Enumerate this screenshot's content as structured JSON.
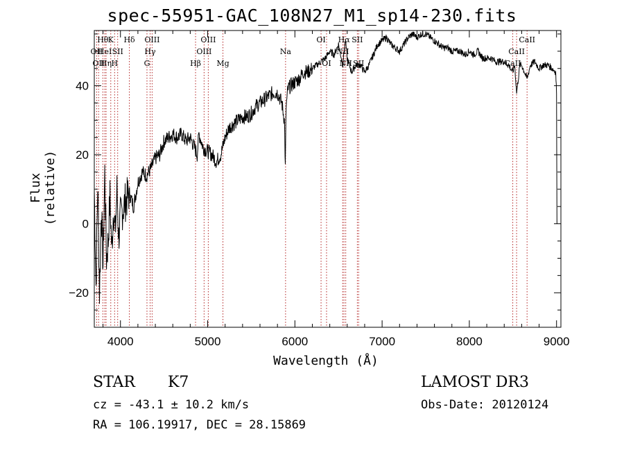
{
  "chart_data": {
    "type": "line",
    "title": "spec-55951-GAC_108N27_M1_sp14-230.fits",
    "xlabel": "Wavelength (Å)",
    "ylabel": "Flux (relative)",
    "xlim": [
      3700,
      9050
    ],
    "ylim": [
      -30,
      56
    ],
    "xticks": [
      {
        "value": 4000,
        "label": "4000"
      },
      {
        "value": 5000,
        "label": "5000"
      },
      {
        "value": 6000,
        "label": "6000"
      },
      {
        "value": 7000,
        "label": "7000"
      },
      {
        "value": 8000,
        "label": "8000"
      },
      {
        "value": 9000,
        "label": "9000"
      }
    ],
    "yticks": [
      {
        "value": -20,
        "label": "−20"
      },
      {
        "value": 0,
        "label": "0"
      },
      {
        "value": 20,
        "label": "20"
      },
      {
        "value": 40,
        "label": "40"
      }
    ],
    "series": [
      {
        "name": "spectrum",
        "color": "#000000",
        "x": [
          3700,
          3720,
          3740,
          3760,
          3780,
          3800,
          3820,
          3840,
          3860,
          3880,
          3900,
          3920,
          3940,
          3960,
          3980,
          4000,
          4050,
          4100,
          4150,
          4200,
          4250,
          4300,
          4350,
          4400,
          4450,
          4500,
          4550,
          4600,
          4650,
          4700,
          4750,
          4800,
          4850,
          4880,
          4900,
          4950,
          5000,
          5050,
          5100,
          5150,
          5200,
          5250,
          5300,
          5350,
          5400,
          5450,
          5500,
          5550,
          5600,
          5650,
          5700,
          5750,
          5800,
          5850,
          5880,
          5890,
          5900,
          5920,
          5950,
          6000,
          6050,
          6100,
          6150,
          6200,
          6250,
          6300,
          6350,
          6400,
          6450,
          6500,
          6550,
          6563,
          6580,
          6600,
          6650,
          6700,
          6750,
          6800,
          6850,
          6900,
          6950,
          7000,
          7050,
          7100,
          7150,
          7200,
          7250,
          7300,
          7350,
          7400,
          7450,
          7500,
          7550,
          7600,
          7650,
          7700,
          7750,
          7800,
          7850,
          7900,
          7950,
          8000,
          8050,
          8100,
          8150,
          8200,
          8250,
          8300,
          8350,
          8400,
          8450,
          8498,
          8520,
          8542,
          8580,
          8600,
          8662,
          8700,
          8750,
          8800,
          8850,
          8900,
          8950,
          8990,
          9000,
          9005
        ],
        "y": [
          10,
          -18,
          12,
          -20,
          5,
          -12,
          15,
          -10,
          -5,
          8,
          -8,
          5,
          -3,
          10,
          -4,
          2,
          6,
          9,
          5,
          12,
          15,
          14,
          16,
          19,
          20,
          24,
          25,
          26,
          25,
          26,
          24,
          25,
          22,
          20,
          26,
          22,
          21,
          20,
          18,
          20,
          25,
          28,
          29,
          30,
          31,
          31,
          32,
          34,
          35,
          36,
          37,
          38,
          38,
          35,
          30,
          16,
          34,
          39,
          40,
          41,
          42,
          44,
          44,
          45,
          46,
          47,
          48,
          50,
          49,
          52,
          46,
          50,
          53,
          48,
          44,
          46,
          46,
          44,
          46,
          49,
          52,
          53,
          54,
          52,
          51,
          50,
          52,
          54,
          55,
          54,
          55,
          55,
          54,
          53,
          52,
          51,
          51,
          50,
          50,
          50,
          49,
          50,
          49,
          50,
          48,
          48,
          48,
          47,
          47,
          47,
          46,
          44,
          46,
          38,
          46,
          46,
          42,
          46,
          47,
          45,
          46,
          46,
          45,
          44,
          38,
          0
        ]
      }
    ],
    "lines": [
      {
        "wavelength": 3727,
        "label": "OII",
        "row": 2
      },
      {
        "wavelength": 3750,
        "label": "OII",
        "row": 3
      },
      {
        "wavelength": 3798,
        "label": "Hθ",
        "row": 1
      },
      {
        "wavelength": 3820,
        "label": "HeI",
        "row": 2
      },
      {
        "wavelength": 3835,
        "label": "Hη",
        "row": 3
      },
      {
        "wavelength": 3889,
        "label": "K",
        "row": 1
      },
      {
        "wavelength": 3933,
        "label": "H",
        "row": 3
      },
      {
        "wavelength": 3968,
        "label": "SII",
        "row": 2
      },
      {
        "wavelength": 4102,
        "label": "Hδ",
        "row": 1
      },
      {
        "wavelength": 4304,
        "label": "G",
        "row": 3
      },
      {
        "wavelength": 4340,
        "label": "Hγ",
        "row": 2
      },
      {
        "wavelength": 4363,
        "label": "OIII",
        "row": 1
      },
      {
        "wavelength": 4861,
        "label": "Hβ",
        "row": 3
      },
      {
        "wavelength": 4959,
        "label": "OIII",
        "row": 2
      },
      {
        "wavelength": 5007,
        "label": "OIII",
        "row": 1
      },
      {
        "wavelength": 5175,
        "label": "Mg",
        "row": 3
      },
      {
        "wavelength": 5893,
        "label": "Na",
        "row": 2
      },
      {
        "wavelength": 6300,
        "label": "OI",
        "row": 1
      },
      {
        "wavelength": 6363,
        "label": "OI",
        "row": 3
      },
      {
        "wavelength": 6548,
        "label": "NII",
        "row": 2
      },
      {
        "wavelength": 6563,
        "label": "Hα",
        "row": 1
      },
      {
        "wavelength": 6583,
        "label": "NII",
        "row": 3
      },
      {
        "wavelength": 6716,
        "label": "SII",
        "row": 1
      },
      {
        "wavelength": 6731,
        "label": "SII",
        "row": 3
      },
      {
        "wavelength": 8498,
        "label": "CaII",
        "row": 3
      },
      {
        "wavelength": 8542,
        "label": "CaII",
        "row": 2
      },
      {
        "wavelength": 8662,
        "label": "CaII",
        "row": 1
      }
    ]
  },
  "info": {
    "object_class": "STAR",
    "subclass": "K7",
    "redshift": "cz = -43.1 ± 10.2 km/s",
    "coords": "RA = 106.19917, DEC =  28.15869",
    "survey": "LAMOST DR3",
    "obs_date": "Obs-Date: 20120124"
  }
}
